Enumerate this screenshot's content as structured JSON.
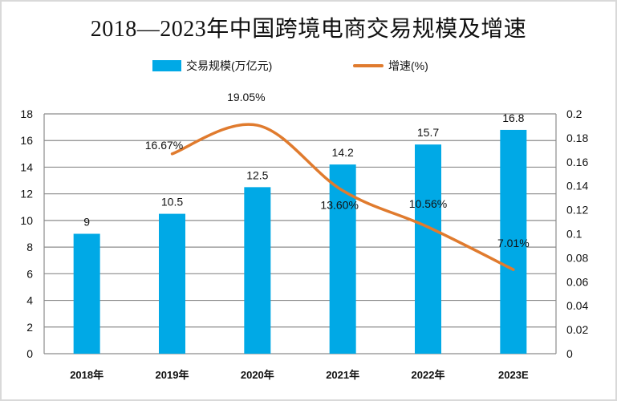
{
  "chart_data": {
    "type": "bar+line",
    "title": "2018—2023年中国跨境电商交易规模及增速",
    "categories": [
      "2018年",
      "2019年",
      "2020年",
      "2021年",
      "2022年",
      "2023E"
    ],
    "series": [
      {
        "name": "交易规模(万亿元)",
        "type": "bar",
        "axis": "left",
        "color": "#00a9e6",
        "values": [
          9,
          10.5,
          12.5,
          14.2,
          15.7,
          16.8
        ],
        "labels": [
          "9",
          "10.5",
          "12.5",
          "14.2",
          "15.7",
          "16.8"
        ]
      },
      {
        "name": "增速(%)",
        "type": "line",
        "axis": "right",
        "color": "#e07b2e",
        "smooth": true,
        "values": [
          null,
          0.1667,
          0.1905,
          0.136,
          0.1056,
          0.0701
        ],
        "labels": [
          null,
          "16.67%",
          "19.05%",
          "13.60%",
          "10.56%",
          "7.01%"
        ]
      }
    ],
    "y_left": {
      "ylim": [
        0,
        18
      ],
      "ticks": [
        "0",
        "2",
        "4",
        "6",
        "8",
        "10",
        "12",
        "14",
        "16",
        "18"
      ]
    },
    "y_right": {
      "ylim": [
        0,
        0.2
      ],
      "ticks": [
        "0",
        "0.02",
        "0.04",
        "0.06",
        "0.08",
        "0.1",
        "0.12",
        "0.14",
        "0.16",
        "0.18",
        "0.2"
      ]
    },
    "grid": true,
    "legend": "top-center"
  }
}
